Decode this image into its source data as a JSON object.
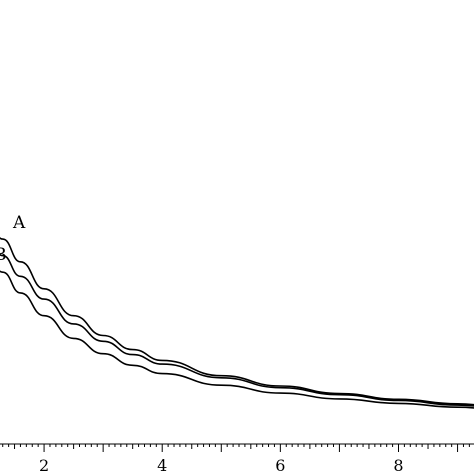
{
  "chart_data": {
    "type": "line",
    "title": "",
    "xlabel": "",
    "ylabel": "",
    "xlim": [
      1.0,
      9.6
    ],
    "ylim": [
      0.0,
      1.0
    ],
    "x_ticks": [
      2,
      4,
      6,
      8
    ],
    "x_tick_labels": [
      "2",
      "4",
      "6",
      "8"
    ],
    "grid": false,
    "stroke_color": "#000000",
    "series": [
      {
        "name": "A",
        "x": [
          1.0,
          1.3,
          1.6,
          2.0,
          2.5,
          3.0,
          3.5,
          4.0,
          5.0,
          6.0,
          7.0,
          8.0,
          9.0,
          9.6
        ],
        "y": [
          0.555,
          0.495,
          0.44,
          0.375,
          0.31,
          0.262,
          0.228,
          0.202,
          0.165,
          0.14,
          0.122,
          0.108,
          0.097,
          0.092
        ]
      },
      {
        "name": "B",
        "x": [
          1.0,
          1.3,
          1.6,
          2.0,
          2.5,
          3.0,
          3.5,
          4.0,
          5.0,
          6.0,
          7.0,
          8.0,
          9.0,
          9.6
        ],
        "y": [
          0.51,
          0.455,
          0.405,
          0.35,
          0.29,
          0.248,
          0.216,
          0.193,
          0.16,
          0.136,
          0.119,
          0.105,
          0.094,
          0.089
        ]
      },
      {
        "name": "",
        "x": [
          1.0,
          1.3,
          1.6,
          2.0,
          2.5,
          3.0,
          3.5,
          4.0,
          5.0,
          6.0,
          7.0,
          8.0,
          9.0,
          9.6
        ],
        "y": [
          0.47,
          0.415,
          0.365,
          0.31,
          0.255,
          0.218,
          0.19,
          0.17,
          0.142,
          0.123,
          0.109,
          0.098,
          0.089,
          0.085
        ]
      }
    ],
    "curve_labels": [
      {
        "text": "A",
        "series": 0
      },
      {
        "text": "B",
        "series": 1
      }
    ]
  }
}
